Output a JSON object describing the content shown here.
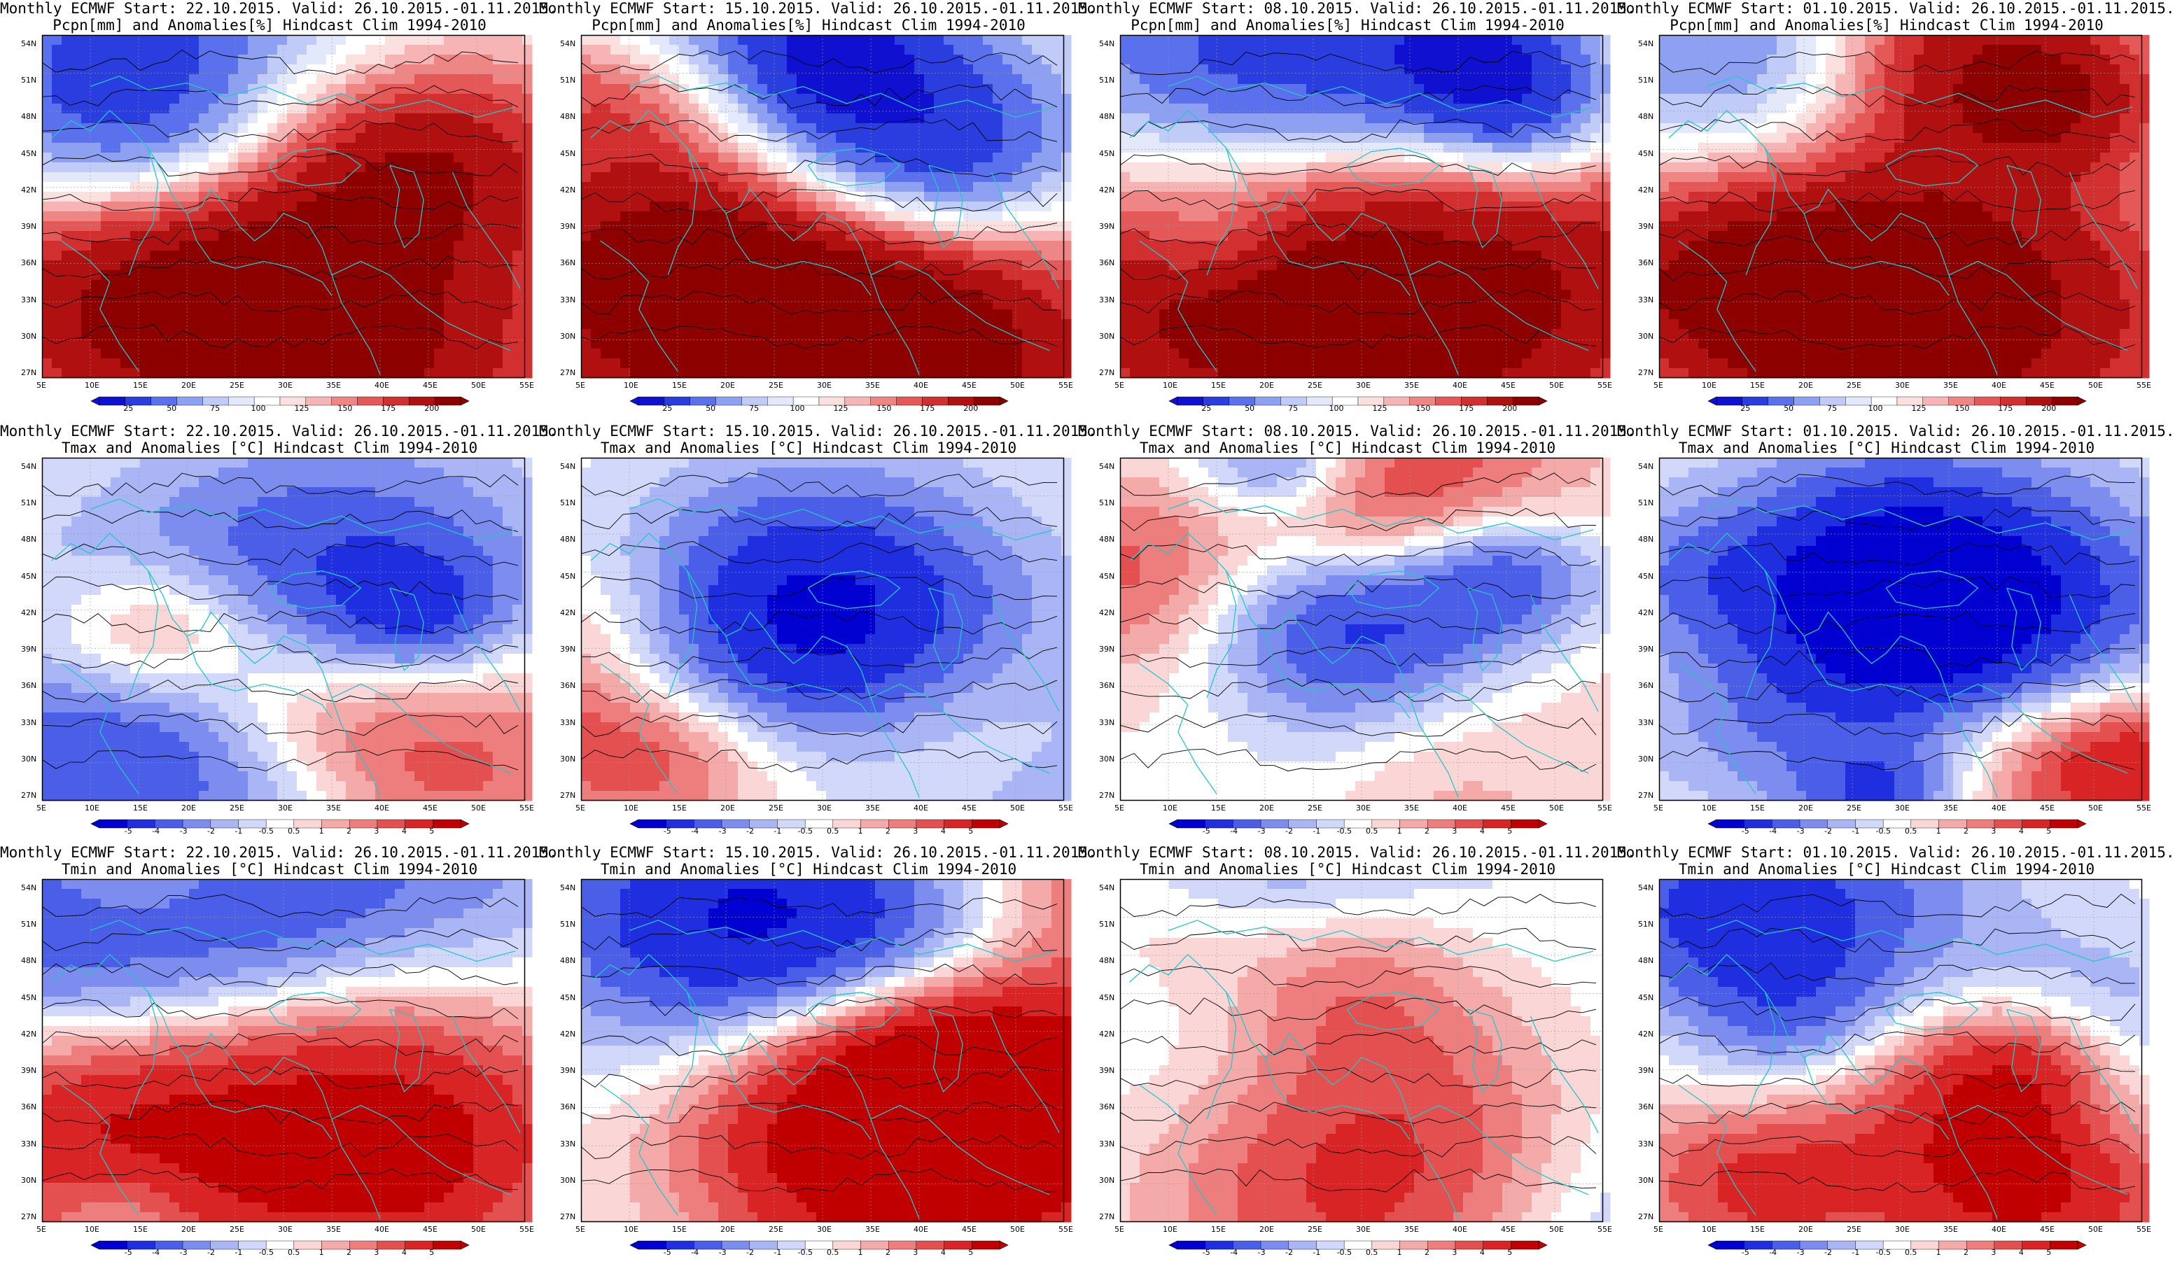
{
  "panels": [
    {
      "row": 0,
      "col": 0,
      "line1": "Monthly ECMWF Start: 22.10.2015. Valid: 26.10.2015.-01.11.2015.",
      "line2": "Pcpn[mm] and Anomalies[%] Hindcast Clim 1994-2010",
      "variable": "pcpn",
      "start": "22.10.2015."
    },
    {
      "row": 0,
      "col": 1,
      "line1": "Monthly ECMWF Start: 15.10.2015. Valid: 26.10.2015.-01.11.2015.",
      "line2": "Pcpn[mm] and Anomalies[%] Hindcast Clim 1994-2010",
      "variable": "pcpn",
      "start": "15.10.2015."
    },
    {
      "row": 0,
      "col": 2,
      "line1": "Monthly ECMWF Start: 08.10.2015. Valid: 26.10.2015.-01.11.2015.",
      "line2": "Pcpn[mm] and Anomalies[%] Hindcast Clim 1994-2010",
      "variable": "pcpn",
      "start": "08.10.2015."
    },
    {
      "row": 0,
      "col": 3,
      "line1": "Monthly ECMWF Start: 01.10.2015. Valid: 26.10.2015.-01.11.2015.",
      "line2": "Pcpn[mm] and Anomalies[%] Hindcast Clim 1994-2010",
      "variable": "pcpn",
      "start": "01.10.2015."
    },
    {
      "row": 1,
      "col": 0,
      "line1": "Monthly ECMWF Start: 22.10.2015. Valid: 26.10.2015.-01.11.2015.",
      "line2": "Tmax and Anomalies [°C] Hindcast Clim 1994-2010",
      "variable": "tmax",
      "start": "22.10.2015."
    },
    {
      "row": 1,
      "col": 1,
      "line1": "Monthly ECMWF Start: 15.10.2015. Valid: 26.10.2015.-01.11.2015.",
      "line2": "Tmax and Anomalies [°C] Hindcast Clim 1994-2010",
      "variable": "tmax",
      "start": "15.10.2015."
    },
    {
      "row": 1,
      "col": 2,
      "line1": "Monthly ECMWF Start: 08.10.2015. Valid: 26.10.2015.-01.11.2015.",
      "line2": "Tmax and Anomalies [°C] Hindcast Clim 1994-2010",
      "variable": "tmax",
      "start": "08.10.2015."
    },
    {
      "row": 1,
      "col": 3,
      "line1": "Monthly ECMWF Start: 01.10.2015. Valid: 26.10.2015.-01.11.2015.",
      "line2": "Tmax and Anomalies [°C] Hindcast Clim 1994-2010",
      "variable": "tmax",
      "start": "01.10.2015."
    },
    {
      "row": 2,
      "col": 0,
      "line1": "Monthly ECMWF Start: 22.10.2015. Valid: 26.10.2015.-01.11.2015.",
      "line2": "Tmin and Anomalies [°C] Hindcast Clim 1994-2010",
      "variable": "tmin",
      "start": "22.10.2015."
    },
    {
      "row": 2,
      "col": 1,
      "line1": "Monthly ECMWF Start: 15.10.2015. Valid: 26.10.2015.-01.11.2015.",
      "line2": "Tmin and Anomalies [°C] Hindcast Clim 1994-2010",
      "variable": "tmin",
      "start": "15.10.2015."
    },
    {
      "row": 2,
      "col": 2,
      "line1": "Monthly ECMWF Start: 08.10.2015. Valid: 26.10.2015.-01.11.2015.",
      "line2": "Tmin and Anomalies [°C] Hindcast Clim 1994-2010",
      "variable": "tmin",
      "start": "08.10.2015."
    },
    {
      "row": 2,
      "col": 3,
      "line1": "Monthly ECMWF Start: 01.10.2015. Valid: 26.10.2015.-01.11.2015.",
      "line2": "Tmin and Anomalies [°C] Hindcast Clim 1994-2010",
      "variable": "tmin",
      "start": "01.10.2015."
    }
  ],
  "lat_labels": [
    "54N",
    "51N",
    "48N",
    "45N",
    "42N",
    "39N",
    "36N",
    "33N",
    "30N",
    "27N"
  ],
  "lon_labels": [
    "5E",
    "10E",
    "15E",
    "20E",
    "25E",
    "30E",
    "35E",
    "40E",
    "45E",
    "50E",
    "55E"
  ],
  "colorbars": {
    "pcpn": {
      "ticks": [
        "25",
        "50",
        "75",
        "100",
        "125",
        "150",
        "175",
        "200"
      ],
      "colors": [
        "#1010d0",
        "#2a3ee0",
        "#5a70ec",
        "#8ea0f2",
        "#c0cbf8",
        "#e4e8fb",
        "#ffffff",
        "#fbe0e0",
        "#f6b4b4",
        "#ee8686",
        "#e45858",
        "#d23030",
        "#b01010",
        "#8c0000"
      ]
    },
    "temp": {
      "ticks": [
        "-5",
        "-4",
        "-3",
        "-2",
        "-1",
        "-0.5",
        "0.5",
        "1",
        "2",
        "3",
        "4",
        "5"
      ],
      "colors": [
        "#0000d0",
        "#1f2fe0",
        "#4a5ee8",
        "#7d8cef",
        "#a9b5f4",
        "#d2d8fa",
        "#ffffff",
        "#fbd6d6",
        "#f5aaaa",
        "#ee7e7e",
        "#e45050",
        "#d82424",
        "#c00000"
      ]
    }
  },
  "styles": {
    "coast_color": "#22c8c8",
    "contour_color": "#000000",
    "grid_color": "#9a9a9a"
  }
}
